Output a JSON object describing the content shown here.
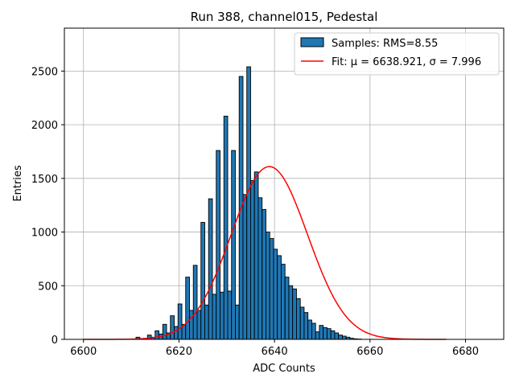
{
  "chart_data": {
    "type": "bar",
    "title": "Run 388, channel015, Pedestal",
    "xlabel": "ADC Counts",
    "ylabel": "Entries",
    "xlim": [
      6596,
      6688
    ],
    "ylim": [
      0,
      2900
    ],
    "xticks": [
      6600,
      6620,
      6640,
      6660,
      6680
    ],
    "yticks": [
      0,
      500,
      1000,
      1500,
      2000,
      2500
    ],
    "grid": true,
    "legend_position": "top-right",
    "bar_color": "#1f77b4",
    "fit_color": "#ff0000",
    "histogram": {
      "name": "Samples: RMS=8.55",
      "bin_start": 6611,
      "bin_width": 0.8,
      "counts": [
        20,
        0,
        0,
        40,
        20,
        80,
        50,
        140,
        60,
        220,
        120,
        330,
        140,
        580,
        270,
        690,
        270,
        1090,
        320,
        1310,
        420,
        1760,
        440,
        2080,
        450,
        1760,
        320,
        2450,
        1350,
        2540,
        1480,
        1560,
        1320,
        1210,
        1000,
        940,
        840,
        780,
        700,
        580,
        500,
        470,
        380,
        300,
        250,
        180,
        150,
        70,
        130,
        110,
        100,
        80,
        60,
        40,
        30,
        20,
        10,
        5,
        3
      ]
    },
    "fit": {
      "name": "Fit: μ = 6638.921, σ = 7.996",
      "mu": 6638.921,
      "sigma": 7.996,
      "amplitude": 1610,
      "x_range": [
        6600,
        6676
      ]
    }
  }
}
